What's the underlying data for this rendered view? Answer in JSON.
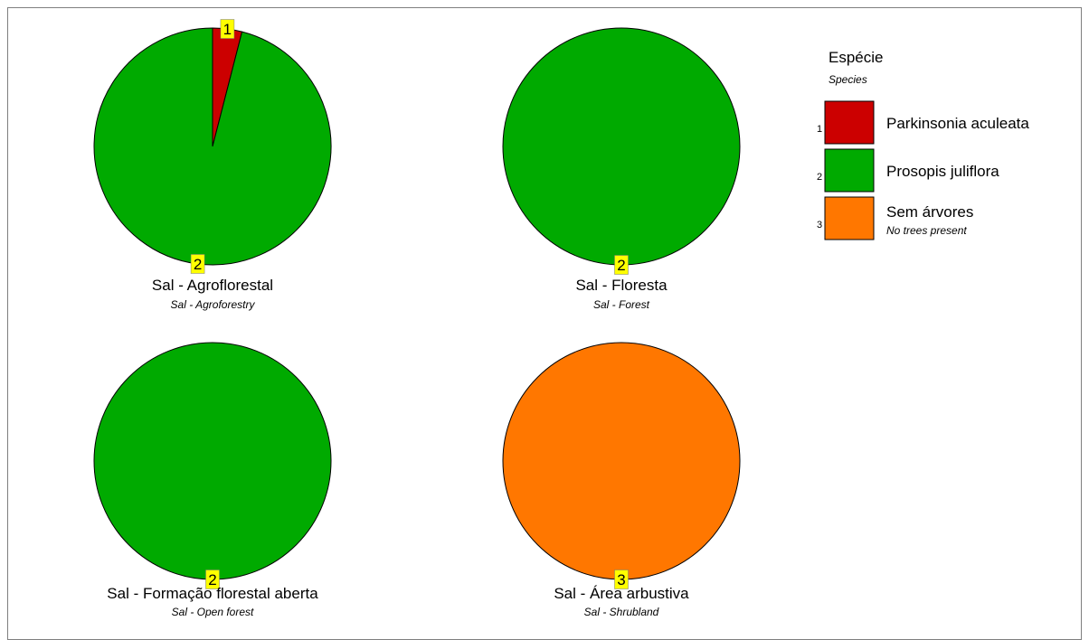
{
  "chart_data": [
    {
      "type": "pie",
      "title": "Sal - Agroflorestal",
      "subtitle": "Sal - Agroforestry",
      "slices": [
        {
          "label": "1",
          "category": "Parkinsonia aculeata",
          "value": 4
        },
        {
          "label": "2",
          "category": "Prosopis juliflora",
          "value": 96
        }
      ]
    },
    {
      "type": "pie",
      "title": "Sal - Floresta",
      "subtitle": "Sal - Forest",
      "slices": [
        {
          "label": "2",
          "category": "Prosopis juliflora",
          "value": 100
        }
      ]
    },
    {
      "type": "pie",
      "title": "Sal - Formação florestal aberta",
      "subtitle": "Sal - Open forest",
      "slices": [
        {
          "label": "2",
          "category": "Prosopis juliflora",
          "value": 100
        }
      ]
    },
    {
      "type": "pie",
      "title": "Sal - Área arbustiva",
      "subtitle": "Sal - Shrubland",
      "slices": [
        {
          "label": "3",
          "category": "Sem árvores",
          "value": 100
        }
      ]
    }
  ],
  "legend": {
    "title": "Espécie",
    "subtitle": "Species",
    "position": "top-right",
    "items": [
      {
        "number": "1",
        "label": "Parkinsonia aculeata",
        "sublabel": "",
        "color": "#cc0000"
      },
      {
        "number": "2",
        "label": "Prosopis juliflora",
        "sublabel": "",
        "color": "#00aa00"
      },
      {
        "number": "3",
        "label": "Sem árvores",
        "sublabel": "No trees present",
        "color": "#ff7700"
      }
    ]
  },
  "colors": {
    "label_box": "#ffff00",
    "outline": "#000000"
  }
}
